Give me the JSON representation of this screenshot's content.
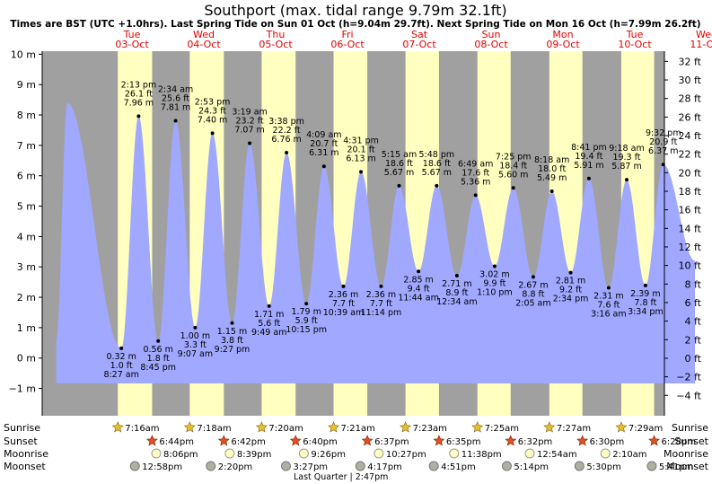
{
  "chart_data": {
    "type": "area",
    "title": "Southport (max. tidal range 9.79m 32.1ft)",
    "subtitle": "Times are BST (UTC +1.0hrs). Last Spring Tide on Sun 01 Oct (h=9.04m 29.7ft). Next Spring Tide on Mon 16 Oct (h=7.99m 26.2ft)",
    "x_unit": "hours since 00:00 Tue 03-Oct",
    "xlim": [
      -24,
      207
    ],
    "ylim_m": [
      -1.9,
      10.1
    ],
    "ylim_ft": [
      -6.2,
      33.1
    ],
    "left_ticks": [
      "10 m",
      "9 m",
      "8 m",
      "7 m",
      "6 m",
      "5 m",
      "4 m",
      "3 m",
      "2 m",
      "1 m",
      "0 m",
      "−1 m"
    ],
    "left_tick_values": [
      10,
      9,
      8,
      7,
      6,
      5,
      4,
      3,
      2,
      1,
      0,
      -1
    ],
    "right_ticks": [
      "32 ft",
      "30 ft",
      "28 ft",
      "26 ft",
      "24 ft",
      "22 ft",
      "20 ft",
      "18 ft",
      "16 ft",
      "14 ft",
      "12 ft",
      "10 ft",
      "8 ft",
      "6 ft",
      "4 ft",
      "2 ft",
      "0 ft",
      "−2 ft",
      "−4 ft"
    ],
    "right_tick_values": [
      32,
      30,
      28,
      26,
      24,
      22,
      20,
      18,
      16,
      14,
      12,
      10,
      8,
      6,
      4,
      2,
      0,
      -2,
      -4
    ],
    "day_headers": [
      {
        "day": "Tue",
        "date": "03-Oct",
        "noon": 12
      },
      {
        "day": "Wed",
        "date": "04-Oct",
        "noon": 36
      },
      {
        "day": "Thu",
        "date": "05-Oct",
        "noon": 60
      },
      {
        "day": "Fri",
        "date": "06-Oct",
        "noon": 84
      },
      {
        "day": "Sat",
        "date": "07-Oct",
        "noon": 108
      },
      {
        "day": "Sun",
        "date": "08-Oct",
        "noon": 132
      },
      {
        "day": "Mon",
        "date": "09-Oct",
        "noon": 156
      },
      {
        "day": "Tue",
        "date": "10-Oct",
        "noon": 180
      },
      {
        "day": "Wed",
        "date": "11-Oct",
        "noon": 204
      }
    ],
    "daylight": [
      {
        "rise": 7.27,
        "set": 18.73
      },
      {
        "rise": 31.3,
        "set": 42.7
      },
      {
        "rise": 55.33,
        "set": 66.67
      },
      {
        "rise": 79.35,
        "set": 90.62
      },
      {
        "rise": 103.38,
        "set": 114.58
      },
      {
        "rise": 127.42,
        "set": 138.53
      },
      {
        "rise": 151.45,
        "set": 162.5
      },
      {
        "rise": 175.48,
        "set": 186.47
      },
      {
        "rise": 199.5,
        "set": 207
      }
    ],
    "pre_extrema": [
      {
        "t": -13.3,
        "h": 0.6
      },
      {
        "t": -9.6,
        "h": 8.4
      }
    ],
    "post_extrema": [
      {
        "t": 200.1,
        "h": 3.2
      }
    ],
    "series": [
      {
        "name": "tide",
        "extrema": [
          {
            "t": 8.45,
            "h": 0.32,
            "kind": "low",
            "time": "8:27 am",
            "m": "0.32 m",
            "ft": "1.0 ft"
          },
          {
            "t": 14.22,
            "h": 7.96,
            "kind": "high",
            "time": "2:13 pm",
            "m": "7.96 m",
            "ft": "26.1 ft"
          },
          {
            "t": 20.75,
            "h": 0.56,
            "kind": "low",
            "time": "8:45 pm",
            "m": "0.56 m",
            "ft": "1.8 ft"
          },
          {
            "t": 26.57,
            "h": 7.81,
            "kind": "high",
            "time": "2:34 am",
            "m": "7.81 m",
            "ft": "25.6 ft"
          },
          {
            "t": 33.12,
            "h": 1.0,
            "kind": "low",
            "time": "9:07 am",
            "m": "1.00 m",
            "ft": "3.3 ft"
          },
          {
            "t": 38.88,
            "h": 7.4,
            "kind": "high",
            "time": "2:53 pm",
            "m": "7.40 m",
            "ft": "24.3 ft"
          },
          {
            "t": 45.45,
            "h": 1.15,
            "kind": "low",
            "time": "9:27 pm",
            "m": "1.15 m",
            "ft": "3.8 ft"
          },
          {
            "t": 51.32,
            "h": 7.07,
            "kind": "high",
            "time": "3:19 am",
            "m": "7.07 m",
            "ft": "23.2 ft"
          },
          {
            "t": 57.82,
            "h": 1.71,
            "kind": "low",
            "time": "9:49 am",
            "m": "1.71 m",
            "ft": "5.6 ft"
          },
          {
            "t": 63.63,
            "h": 6.76,
            "kind": "high",
            "time": "3:38 pm",
            "m": "6.76 m",
            "ft": "22.2 ft"
          },
          {
            "t": 70.25,
            "h": 1.79,
            "kind": "low",
            "time": "10:15 pm",
            "m": "1.79 m",
            "ft": "5.9 ft"
          },
          {
            "t": 76.15,
            "h": 6.31,
            "kind": "high",
            "time": "4:09 am",
            "m": "6.31 m",
            "ft": "20.7 ft"
          },
          {
            "t": 82.65,
            "h": 2.36,
            "kind": "low",
            "time": "10:39 am",
            "m": "2.36 m",
            "ft": "7.7 ft"
          },
          {
            "t": 88.52,
            "h": 6.13,
            "kind": "high",
            "time": "4:31 pm",
            "m": "6.13 m",
            "ft": "20.1 ft"
          },
          {
            "t": 95.23,
            "h": 2.36,
            "kind": "low",
            "time": "11:14 pm",
            "m": "2.36 m",
            "ft": "7.7 ft"
          },
          {
            "t": 101.25,
            "h": 5.67,
            "kind": "high",
            "time": "5:15 am",
            "m": "5.67 m",
            "ft": "18.6 ft"
          },
          {
            "t": 107.73,
            "h": 2.85,
            "kind": "low",
            "time": "11:44 am",
            "m": "2.85 m",
            "ft": "9.4 ft"
          },
          {
            "t": 113.8,
            "h": 5.67,
            "kind": "high",
            "time": "5:48 pm",
            "m": "5.67 m",
            "ft": "18.6 ft"
          },
          {
            "t": 120.57,
            "h": 2.71,
            "kind": "low",
            "time": "12:34 am",
            "m": "2.71 m",
            "ft": "8.9 ft"
          },
          {
            "t": 126.82,
            "h": 5.36,
            "kind": "high",
            "time": "6:49 am",
            "m": "5.36 m",
            "ft": "17.6 ft"
          },
          {
            "t": 133.17,
            "h": 3.02,
            "kind": "low",
            "time": "1:10 pm",
            "m": "3.02 m",
            "ft": "9.9 ft"
          },
          {
            "t": 139.42,
            "h": 5.6,
            "kind": "high",
            "time": "7:25 pm",
            "m": "5.60 m",
            "ft": "18.4 ft"
          },
          {
            "t": 146.08,
            "h": 2.67,
            "kind": "low",
            "time": "2:05 am",
            "m": "2.67 m",
            "ft": "8.8 ft"
          },
          {
            "t": 152.3,
            "h": 5.49,
            "kind": "high",
            "time": "8:18 am",
            "m": "5.49 m",
            "ft": "18.0 ft"
          },
          {
            "t": 158.57,
            "h": 2.81,
            "kind": "low",
            "time": "2:34 pm",
            "m": "2.81 m",
            "ft": "9.2 ft"
          },
          {
            "t": 164.68,
            "h": 5.91,
            "kind": "high",
            "time": "8:41 pm",
            "m": "5.91 m",
            "ft": "19.4 ft"
          },
          {
            "t": 171.27,
            "h": 2.31,
            "kind": "low",
            "time": "3:16 am",
            "m": "2.31 m",
            "ft": "7.6 ft"
          },
          {
            "t": 177.3,
            "h": 5.87,
            "kind": "high",
            "time": "9:18 am",
            "m": "5.87 m",
            "ft": "19.3 ft"
          },
          {
            "t": 183.57,
            "h": 2.39,
            "kind": "low",
            "time": "3:34 pm",
            "m": "2.39 m",
            "ft": "7.8 ft"
          },
          {
            "t": 189.53,
            "h": 6.37,
            "kind": "high",
            "time": "9:32 pm",
            "m": "6.37 m",
            "ft": "20.9 ft"
          }
        ]
      }
    ],
    "astro_rows": [
      {
        "label": "Sunrise",
        "kind": "sunrise",
        "events": [
          {
            "t": 7.27,
            "text": "7:16am"
          },
          {
            "t": 31.3,
            "text": "7:18am"
          },
          {
            "t": 55.33,
            "text": "7:20am"
          },
          {
            "t": 79.35,
            "text": "7:21am"
          },
          {
            "t": 103.38,
            "text": "7:23am"
          },
          {
            "t": 127.42,
            "text": "7:25am"
          },
          {
            "t": 151.45,
            "text": "7:27am"
          },
          {
            "t": 175.48,
            "text": "7:29am"
          }
        ]
      },
      {
        "label": "Sunset",
        "kind": "sunset",
        "events": [
          {
            "t": 18.73,
            "text": "6:44pm"
          },
          {
            "t": 42.7,
            "text": "6:42pm"
          },
          {
            "t": 66.67,
            "text": "6:40pm"
          },
          {
            "t": 90.62,
            "text": "6:37pm"
          },
          {
            "t": 114.58,
            "text": "6:35pm"
          },
          {
            "t": 138.53,
            "text": "6:32pm"
          },
          {
            "t": 162.5,
            "text": "6:30pm"
          },
          {
            "t": 186.47,
            "text": "6:28pm"
          }
        ]
      },
      {
        "label": "Moonrise",
        "kind": "moonrise",
        "events": [
          {
            "t": 20.1,
            "text": "8:06pm"
          },
          {
            "t": 44.65,
            "text": "8:39pm"
          },
          {
            "t": 69.43,
            "text": "9:26pm"
          },
          {
            "t": 94.45,
            "text": "10:27pm"
          },
          {
            "t": 119.63,
            "text": "11:38pm"
          },
          {
            "t": 144.9,
            "text": "12:54am"
          },
          {
            "t": 170.17,
            "text": "2:10am"
          }
        ]
      },
      {
        "label": "Moonset",
        "kind": "moonset",
        "events": [
          {
            "t": 12.97,
            "text": "12:58pm"
          },
          {
            "t": 38.33,
            "text": "2:20pm"
          },
          {
            "t": 63.45,
            "text": "3:27pm"
          },
          {
            "t": 88.28,
            "text": "4:17pm"
          },
          {
            "t": 112.85,
            "text": "4:51pm"
          },
          {
            "t": 137.23,
            "text": "5:14pm"
          },
          {
            "t": 161.5,
            "text": "5:30pm"
          },
          {
            "t": 185.68,
            "text": "5:41pm"
          }
        ]
      }
    ],
    "moon_phase": {
      "t": 84,
      "text": "Last Quarter | 2:47pm"
    }
  }
}
